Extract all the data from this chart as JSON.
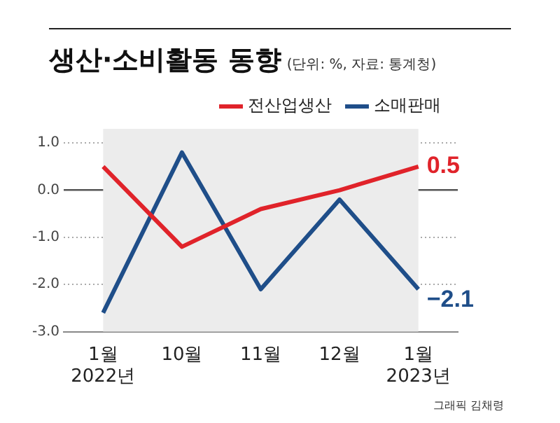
{
  "chart_data": {
    "type": "line",
    "title": "생산·소비활동 동향",
    "subtitle": "(단위: %, 자료: 통계청)",
    "categories": [
      "1월\n2022년",
      "10월",
      "11월",
      "12월",
      "1월\n2023년"
    ],
    "series": [
      {
        "name": "전산업생산",
        "color": "#e0232a",
        "values": [
          0.5,
          -1.2,
          -0.4,
          0.0,
          0.5
        ],
        "value_labels": [
          null,
          null,
          null,
          null,
          "0.5"
        ]
      },
      {
        "name": "소매판매",
        "color": "#1f4e89",
        "values": [
          -2.6,
          0.8,
          -2.1,
          -0.2,
          -2.1
        ],
        "value_labels": [
          null,
          null,
          null,
          null,
          "−2.1"
        ]
      }
    ],
    "ylim": [
      -3.0,
      1.3
    ],
    "yticks": [
      {
        "value": 1.0,
        "label": "1.0"
      },
      {
        "value": 0.0,
        "label": "0.0"
      },
      {
        "value": -1.0,
        "label": "-1.0"
      },
      {
        "value": -2.0,
        "label": "-2.0"
      },
      {
        "value": -3.0,
        "label": "-3.0"
      }
    ],
    "bands": [
      {
        "axis": "x",
        "from": "1월\n2022년",
        "to": "1월\n2023년",
        "color": "#ececec"
      }
    ],
    "grid": "y",
    "legend": "top right",
    "marker": "none",
    "line_style": "solid",
    "annotations": [
      "그래픽 김채령"
    ]
  }
}
